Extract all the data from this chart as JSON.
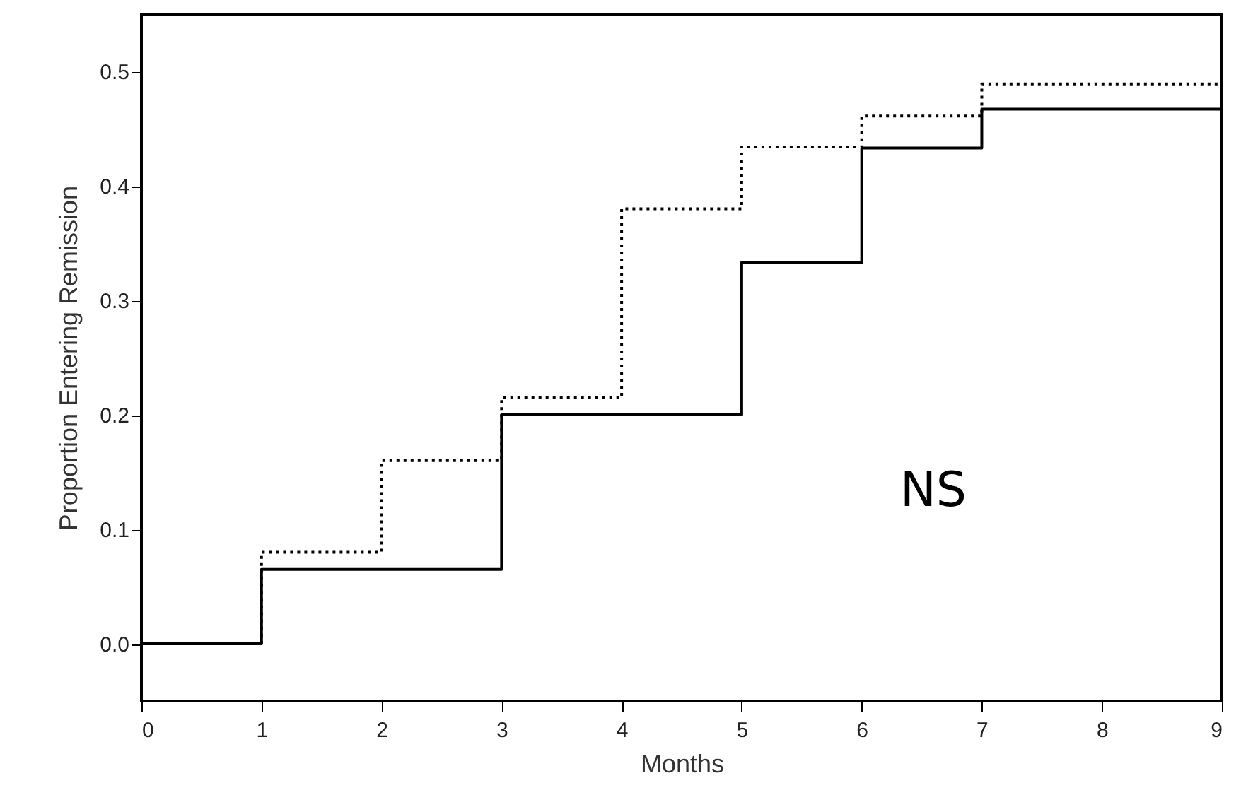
{
  "chart_data": {
    "type": "step",
    "xlabel": "Months",
    "ylabel": "Proportion Entering Remission",
    "xlim": [
      0,
      9
    ],
    "xticks": [
      0,
      1,
      2,
      3,
      4,
      5,
      6,
      7,
      8,
      9
    ],
    "ylim": [
      -0.05,
      0.55
    ],
    "yticks": [
      {
        "value": 0,
        "label": "0.0"
      },
      {
        "value": 0.1,
        "label": "0.1"
      },
      {
        "value": 0.2,
        "label": "0.2"
      },
      {
        "value": 0.3,
        "label": "0.3"
      },
      {
        "value": 0.4,
        "label": "0.4"
      },
      {
        "value": 0.5,
        "label": "0.5"
      }
    ],
    "grid": false,
    "marker": "none",
    "annotations": [
      "NS"
    ],
    "series": [
      {
        "color": "#000000",
        "line_style": "solid",
        "x": [
          0,
          1,
          3,
          5,
          6,
          7,
          9
        ],
        "values": [
          0,
          0.065,
          0.2,
          0.333,
          0.433,
          0.467,
          0.467
        ]
      },
      {
        "color": "#000000",
        "line_style": "dotted",
        "x": [
          0,
          1,
          2,
          3,
          4,
          5,
          6,
          7,
          9
        ],
        "values": [
          0,
          0.08,
          0.16,
          0.215,
          0.38,
          0.434,
          0.461,
          0.489,
          0.489
        ]
      }
    ]
  }
}
